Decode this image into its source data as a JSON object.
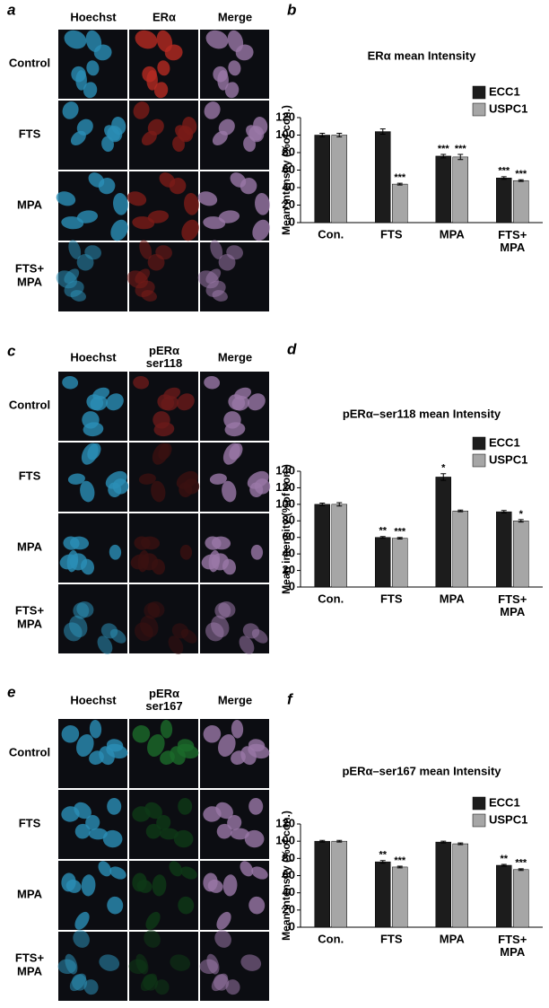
{
  "figure_panels": [
    {
      "letter": "a",
      "columns": [
        "Hoechst",
        "ERα",
        "Merge"
      ],
      "rows": [
        "Control",
        "FTS",
        "MPA",
        "FTS+\nMPA"
      ]
    },
    {
      "letter": "c",
      "columns": [
        "Hoechst",
        "pERα\nser118",
        "Merge"
      ],
      "rows": [
        "Control",
        "FTS",
        "MPA",
        "FTS+\nMPA"
      ]
    },
    {
      "letter": "e",
      "columns": [
        "Hoechst",
        "pERα\nser167",
        "Merge"
      ],
      "rows": [
        "Control",
        "FTS",
        "MPA",
        "FTS+\nMPA"
      ]
    }
  ],
  "chart_data": [
    {
      "type": "bar",
      "letter": "b",
      "title": "ERα mean Intensity",
      "y_label": "Mean intensity (%of con.)",
      "categories": [
        "Con.",
        "FTS",
        "MPA",
        "FTS+\nMPA"
      ],
      "series": [
        {
          "name": "ECC1",
          "color": "#1c1c1c",
          "values": [
            100,
            104,
            76,
            51
          ],
          "errors": [
            2,
            3,
            2,
            1.5
          ],
          "significance": [
            null,
            null,
            "***",
            "***"
          ]
        },
        {
          "name": "USPC1",
          "color": "#a6a6a6",
          "values": [
            100,
            44,
            75,
            48
          ],
          "errors": [
            2,
            1,
            3,
            1
          ],
          "significance": [
            null,
            "***",
            "***",
            "***"
          ]
        }
      ],
      "ylim": [
        0,
        120
      ],
      "yticks": [
        0,
        20,
        40,
        60,
        80,
        100,
        120
      ]
    },
    {
      "type": "bar",
      "letter": "d",
      "title": "pERα–ser118 mean Intensity",
      "y_label": "Mean intensity (%of con.)",
      "categories": [
        "Con.",
        "FTS",
        "MPA",
        "FTS+\nMPA"
      ],
      "series": [
        {
          "name": "ECC1",
          "color": "#1c1c1c",
          "values": [
            100,
            60,
            133,
            91
          ],
          "errors": [
            1.5,
            1,
            4,
            1.5
          ],
          "significance": [
            null,
            "**",
            "*",
            null
          ]
        },
        {
          "name": "USPC1",
          "color": "#a6a6a6",
          "values": [
            100,
            59,
            92,
            80
          ],
          "errors": [
            2,
            1,
            1,
            1.5
          ],
          "significance": [
            null,
            "***",
            null,
            "*"
          ]
        }
      ],
      "ylim": [
        0,
        140
      ],
      "yticks": [
        0,
        20,
        40,
        60,
        80,
        100,
        120,
        140
      ]
    },
    {
      "type": "bar",
      "letter": "f",
      "title": "pERα–ser167 mean Intensity",
      "y_label": "Mean intensity (%of con.)",
      "categories": [
        "Con.",
        "FTS",
        "MPA",
        "FTS+\nMPA"
      ],
      "series": [
        {
          "name": "ECC1",
          "color": "#1c1c1c",
          "values": [
            100,
            76,
            99,
            72
          ],
          "errors": [
            1,
            1.5,
            1,
            1
          ],
          "significance": [
            null,
            "**",
            null,
            "**"
          ]
        },
        {
          "name": "USPC1",
          "color": "#a6a6a6",
          "values": [
            100,
            70,
            97,
            67
          ],
          "errors": [
            1,
            1,
            1,
            1
          ],
          "significance": [
            null,
            "***",
            null,
            "***"
          ]
        }
      ],
      "ylim": [
        0,
        120
      ],
      "yticks": [
        0,
        20,
        40,
        60,
        80,
        100,
        120
      ]
    }
  ]
}
